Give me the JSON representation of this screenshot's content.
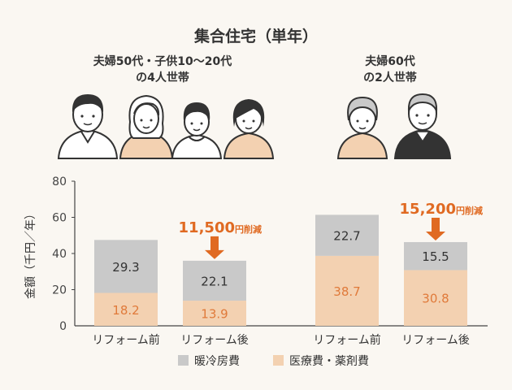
{
  "title": "集合住宅（単年）",
  "groups": [
    {
      "line1": "夫婦50代・子供10〜20代",
      "line2": "の4人世帯"
    },
    {
      "line1": "夫婦60代",
      "line2": "の2人世帯"
    }
  ],
  "colors": {
    "heating": "#c9c9c9",
    "medical": "#f3d1b1",
    "medical_text": "#e07a3a",
    "accent": "#e06a22",
    "axis": "#444444"
  },
  "chart_data": {
    "type": "bar",
    "stacked": true,
    "ylabel": "金額（千円／年）",
    "ylim": [
      0,
      80
    ],
    "yticks": [
      0,
      20,
      40,
      60,
      80
    ],
    "categories": [
      "リフォーム前",
      "リフォーム後",
      "リフォーム前",
      "リフォーム後"
    ],
    "series": [
      {
        "name": "医療費・薬剤費",
        "values": [
          18.2,
          13.9,
          38.7,
          30.8
        ],
        "labels": [
          "18.2",
          "13.9",
          "38.7",
          "30.8"
        ]
      },
      {
        "name": "暖冷房費",
        "values": [
          29.3,
          22.1,
          22.7,
          15.5
        ],
        "labels": [
          "29.3",
          "22.1",
          "22.7",
          "15.5"
        ]
      }
    ],
    "annotations": [
      {
        "bar": 1,
        "value": "11,500",
        "unit": "円削減"
      },
      {
        "bar": 3,
        "value": "15,200",
        "unit": "円削減"
      }
    ],
    "legend": [
      {
        "label": "暖冷房費",
        "series": 1
      },
      {
        "label": "医療費・薬剤費",
        "series": 0
      }
    ]
  }
}
